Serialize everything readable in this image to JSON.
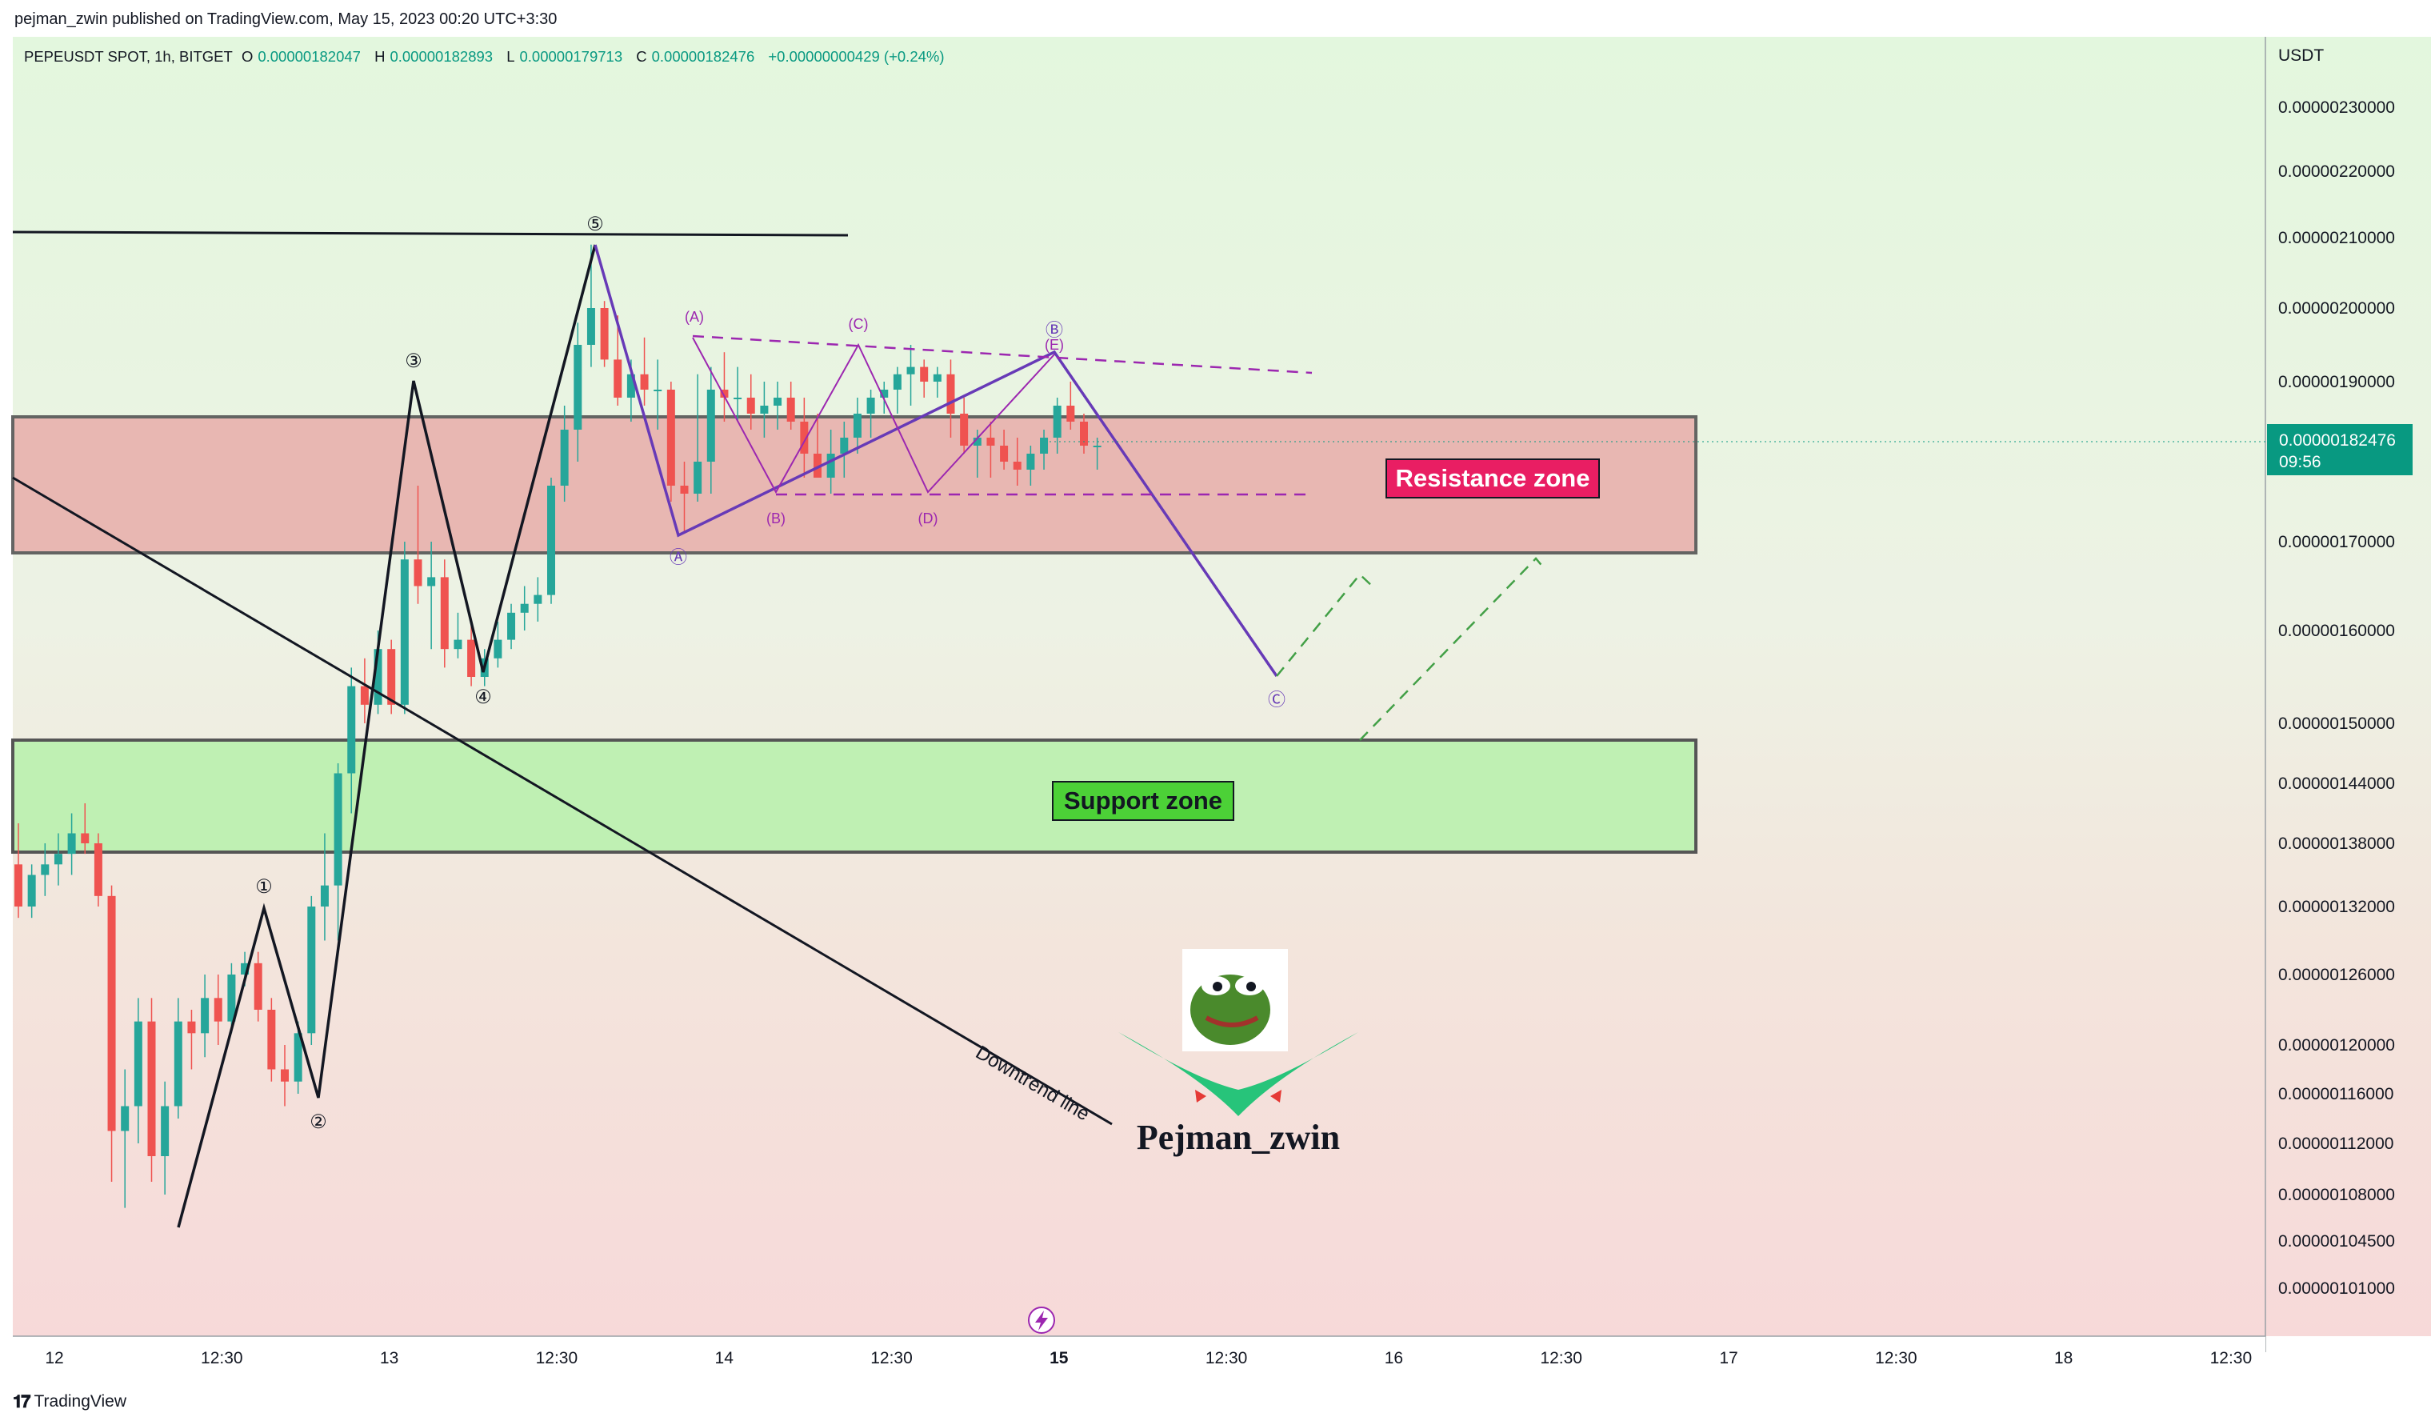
{
  "header": {
    "published_text": "pejman_zwin published on TradingView.com, May 15, 2023 00:20 UTC+3:30"
  },
  "symbol_info": {
    "symbol": "PEPEUSDT SPOT, 1h, BITGET",
    "open_label": "O",
    "open": "0.00000182047",
    "high_label": "H",
    "high": "0.00000182893",
    "low_label": "L",
    "low": "0.00000179713",
    "close_label": "C",
    "close": "0.00000182476",
    "change": "+0.00000000429 (+0.24%)"
  },
  "price_axis": {
    "currency": "USDT",
    "ticks": [
      "0.00000230000",
      "0.00000220000",
      "0.00000210000",
      "0.00000200000",
      "0.00000190000",
      "0.00000170000",
      "0.00000160000",
      "0.00000150000",
      "0.00000144000",
      "0.00000138000",
      "0.00000132000",
      "0.00000126000",
      "0.00000120000",
      "0.00000116000",
      "0.00000112000",
      "0.00000108000",
      "0.00000104500",
      "0.00000101000"
    ],
    "current_price": "0.00000182476",
    "countdown": "09:56"
  },
  "time_axis": {
    "ticks": [
      "12",
      "12:30",
      "13",
      "12:30",
      "14",
      "12:30",
      "15",
      "12:30",
      "16",
      "12:30",
      "17",
      "12:30",
      "18",
      "12:30"
    ]
  },
  "annotations": {
    "resistance_label": "Resistance zone",
    "support_label": "Support zone",
    "downtrend_label": "Downtrend line",
    "author_name": "Pejman_zwin",
    "impulse_labels": [
      "①",
      "②",
      "③",
      "④",
      "⑤"
    ],
    "correction_labels": [
      "Ⓐ",
      "Ⓑ",
      "Ⓒ"
    ],
    "triangle_labels": [
      "(A)",
      "(B)",
      "(C)",
      "(D)",
      "(E)"
    ]
  },
  "colors": {
    "up": "#26a69a",
    "down": "#ef5350",
    "resistance_fill": "#e8b1ad",
    "support_fill": "#bff0b3",
    "resistance_label_bg": "#e91e63",
    "support_label_bg": "#4cd137",
    "wave_purple": "#673ab7",
    "triangle_purple": "#9c27b0",
    "projection_green": "#43a047",
    "price_tag_bg": "#089981"
  },
  "footer": {
    "brand": "TradingView"
  },
  "chart_data": {
    "type": "candlestick",
    "symbol": "PEPEUSDT",
    "timeframe": "1h",
    "exchange": "BITGET",
    "x_axis": "time",
    "y_axis": "price (USDT)",
    "ylim": [
      9.9e-07,
      2.35e-06
    ],
    "last": {
      "open": 1.82047e-06,
      "high": 1.82893e-06,
      "low": 1.79713e-06,
      "close": 1.82476e-06
    },
    "candles": [
      [
        1.36e-06,
        1.4e-06,
        1.31e-06,
        1.32e-06
      ],
      [
        1.32e-06,
        1.36e-06,
        1.31e-06,
        1.35e-06
      ],
      [
        1.35e-06,
        1.38e-06,
        1.33e-06,
        1.36e-06
      ],
      [
        1.36e-06,
        1.39e-06,
        1.34e-06,
        1.37e-06
      ],
      [
        1.37e-06,
        1.41e-06,
        1.35e-06,
        1.39e-06
      ],
      [
        1.39e-06,
        1.42e-06,
        1.37e-06,
        1.38e-06
      ],
      [
        1.38e-06,
        1.39e-06,
        1.32e-06,
        1.33e-06
      ],
      [
        1.33e-06,
        1.34e-06,
        1.09e-06,
        1.13e-06
      ],
      [
        1.13e-06,
        1.18e-06,
        1.07e-06,
        1.15e-06
      ],
      [
        1.15e-06,
        1.24e-06,
        1.12e-06,
        1.22e-06
      ],
      [
        1.22e-06,
        1.24e-06,
        1.09e-06,
        1.11e-06
      ],
      [
        1.11e-06,
        1.17e-06,
        1.08e-06,
        1.15e-06
      ],
      [
        1.15e-06,
        1.24e-06,
        1.14e-06,
        1.22e-06
      ],
      [
        1.22e-06,
        1.23e-06,
        1.18e-06,
        1.21e-06
      ],
      [
        1.21e-06,
        1.26e-06,
        1.19e-06,
        1.24e-06
      ],
      [
        1.24e-06,
        1.26e-06,
        1.2e-06,
        1.22e-06
      ],
      [
        1.22e-06,
        1.27e-06,
        1.21e-06,
        1.26e-06
      ],
      [
        1.26e-06,
        1.28e-06,
        1.25e-06,
        1.27e-06
      ],
      [
        1.27e-06,
        1.28e-06,
        1.22e-06,
        1.23e-06
      ],
      [
        1.23e-06,
        1.24e-06,
        1.17e-06,
        1.18e-06
      ],
      [
        1.18e-06,
        1.2e-06,
        1.15e-06,
        1.17e-06
      ],
      [
        1.17e-06,
        1.22e-06,
        1.16e-06,
        1.21e-06
      ],
      [
        1.21e-06,
        1.33e-06,
        1.2e-06,
        1.32e-06
      ],
      [
        1.32e-06,
        1.39e-06,
        1.29e-06,
        1.34e-06
      ],
      [
        1.34e-06,
        1.46e-06,
        1.29e-06,
        1.45e-06
      ],
      [
        1.45e-06,
        1.56e-06,
        1.41e-06,
        1.54e-06
      ],
      [
        1.54e-06,
        1.57e-06,
        1.5e-06,
        1.52e-06
      ],
      [
        1.52e-06,
        1.6e-06,
        1.51e-06,
        1.58e-06
      ],
      [
        1.58e-06,
        1.59e-06,
        1.51e-06,
        1.52e-06
      ],
      [
        1.52e-06,
        1.7e-06,
        1.51e-06,
        1.68e-06
      ],
      [
        1.68e-06,
        1.77e-06,
        1.63e-06,
        1.65e-06
      ],
      [
        1.65e-06,
        1.7e-06,
        1.58e-06,
        1.66e-06
      ],
      [
        1.66e-06,
        1.68e-06,
        1.56e-06,
        1.58e-06
      ],
      [
        1.58e-06,
        1.62e-06,
        1.57e-06,
        1.59e-06
      ],
      [
        1.59e-06,
        1.61e-06,
        1.54e-06,
        1.55e-06
      ],
      [
        1.55e-06,
        1.58e-06,
        1.54e-06,
        1.57e-06
      ],
      [
        1.57e-06,
        1.61e-06,
        1.56e-06,
        1.59e-06
      ],
      [
        1.59e-06,
        1.63e-06,
        1.58e-06,
        1.62e-06
      ],
      [
        1.62e-06,
        1.65e-06,
        1.6e-06,
        1.63e-06
      ],
      [
        1.63e-06,
        1.66e-06,
        1.61e-06,
        1.64e-06
      ],
      [
        1.64e-06,
        1.78e-06,
        1.63e-06,
        1.77e-06
      ],
      [
        1.77e-06,
        1.87e-06,
        1.75e-06,
        1.84e-06
      ],
      [
        1.84e-06,
        1.98e-06,
        1.8e-06,
        1.95e-06
      ],
      [
        1.95e-06,
        2.09e-06,
        1.92e-06,
        2e-06
      ],
      [
        2e-06,
        2.01e-06,
        1.92e-06,
        1.93e-06
      ],
      [
        1.93e-06,
        1.99e-06,
        1.87e-06,
        1.88e-06
      ],
      [
        1.88e-06,
        1.93e-06,
        1.85e-06,
        1.91e-06
      ],
      [
        1.91e-06,
        1.96e-06,
        1.87e-06,
        1.89e-06
      ],
      [
        1.89e-06,
        1.93e-06,
        1.84e-06,
        1.89e-06
      ],
      [
        1.89e-06,
        1.9e-06,
        1.75e-06,
        1.77e-06
      ],
      [
        1.77e-06,
        1.8e-06,
        1.71e-06,
        1.76e-06
      ],
      [
        1.76e-06,
        1.91e-06,
        1.75e-06,
        1.8e-06
      ],
      [
        1.8e-06,
        1.92e-06,
        1.76e-06,
        1.89e-06
      ],
      [
        1.89e-06,
        1.94e-06,
        1.85e-06,
        1.88e-06
      ],
      [
        1.88e-06,
        1.92e-06,
        1.85e-06,
        1.88e-06
      ],
      [
        1.88e-06,
        1.91e-06,
        1.84e-06,
        1.86e-06
      ],
      [
        1.86e-06,
        1.9e-06,
        1.83e-06,
        1.87e-06
      ],
      [
        1.87e-06,
        1.9e-06,
        1.84e-06,
        1.88e-06
      ],
      [
        1.88e-06,
        1.9e-06,
        1.84e-06,
        1.85e-06
      ],
      [
        1.85e-06,
        1.88e-06,
        1.78e-06,
        1.81e-06
      ],
      [
        1.81e-06,
        1.86e-06,
        1.78e-06,
        1.78e-06
      ],
      [
        1.78e-06,
        1.84e-06,
        1.76e-06,
        1.81e-06
      ],
      [
        1.81e-06,
        1.85e-06,
        1.78e-06,
        1.83e-06
      ],
      [
        1.83e-06,
        1.88e-06,
        1.81e-06,
        1.86e-06
      ],
      [
        1.86e-06,
        1.89e-06,
        1.83e-06,
        1.88e-06
      ],
      [
        1.88e-06,
        1.9e-06,
        1.86e-06,
        1.89e-06
      ],
      [
        1.89e-06,
        1.92e-06,
        1.86e-06,
        1.91e-06
      ],
      [
        1.91e-06,
        1.95e-06,
        1.87e-06,
        1.92e-06
      ],
      [
        1.92e-06,
        1.93e-06,
        1.88e-06,
        1.9e-06
      ],
      [
        1.9e-06,
        1.92e-06,
        1.88e-06,
        1.91e-06
      ],
      [
        1.91e-06,
        1.93e-06,
        1.83e-06,
        1.86e-06
      ],
      [
        1.86e-06,
        1.88e-06,
        1.81e-06,
        1.82e-06
      ],
      [
        1.82e-06,
        1.84e-06,
        1.78e-06,
        1.83e-06
      ],
      [
        1.83e-06,
        1.85e-06,
        1.78e-06,
        1.82e-06
      ],
      [
        1.82e-06,
        1.84e-06,
        1.79e-06,
        1.8e-06
      ],
      [
        1.8e-06,
        1.83e-06,
        1.77e-06,
        1.79e-06
      ],
      [
        1.79e-06,
        1.82e-06,
        1.77e-06,
        1.81e-06
      ],
      [
        1.81e-06,
        1.84e-06,
        1.79e-06,
        1.83e-06
      ],
      [
        1.83e-06,
        1.88e-06,
        1.81e-06,
        1.87e-06
      ],
      [
        1.87e-06,
        1.9e-06,
        1.84e-06,
        1.85e-06
      ],
      [
        1.85e-06,
        1.86e-06,
        1.81e-06,
        1.82e-06
      ],
      [
        1.82e-06,
        1.83e-06,
        1.79e-06,
        1.82e-06
      ]
    ],
    "zones": [
      {
        "name": "Resistance zone",
        "from": 1.69e-06,
        "to": 1.865e-06
      },
      {
        "name": "Support zone",
        "from": 1.38e-06,
        "to": 1.48e-06
      }
    ]
  }
}
